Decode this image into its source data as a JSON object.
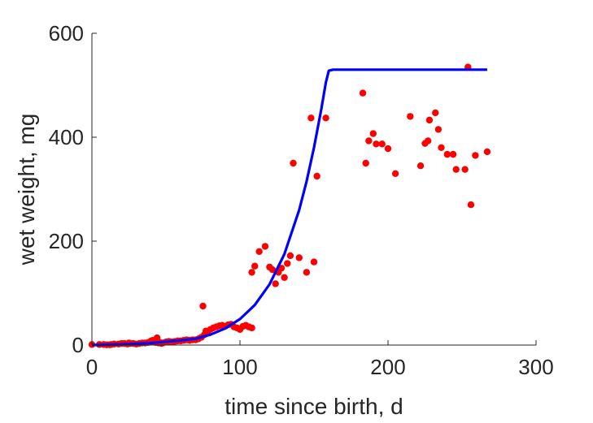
{
  "chart_data": {
    "type": "scatter",
    "title": "",
    "xlabel": "time since birth, d",
    "ylabel": "wet weight, mg",
    "xlim": [
      0,
      300
    ],
    "ylim": [
      0,
      600
    ],
    "xticks": [
      0,
      100,
      200,
      300
    ],
    "yticks": [
      0,
      200,
      400,
      600
    ],
    "grid": false,
    "legend": "none",
    "series": [
      {
        "kind": "scatter",
        "color": "#ff0000",
        "points": [
          [
            0,
            1
          ],
          [
            5,
            1
          ],
          [
            8,
            1
          ],
          [
            10,
            0.5
          ],
          [
            12,
            0.5
          ],
          [
            13,
            1
          ],
          [
            15,
            2
          ],
          [
            18,
            2
          ],
          [
            20,
            3
          ],
          [
            22,
            3
          ],
          [
            24,
            2
          ],
          [
            25,
            4
          ],
          [
            26,
            3
          ],
          [
            28,
            3
          ],
          [
            30,
            2
          ],
          [
            32,
            3
          ],
          [
            34,
            4
          ],
          [
            36,
            4
          ],
          [
            38,
            5
          ],
          [
            39,
            6
          ],
          [
            40,
            8
          ],
          [
            41,
            9
          ],
          [
            42,
            6
          ],
          [
            43,
            5
          ],
          [
            44,
            14
          ],
          [
            45,
            4
          ],
          [
            46,
            5
          ],
          [
            47,
            3
          ],
          [
            48,
            4
          ],
          [
            50,
            6
          ],
          [
            52,
            7
          ],
          [
            54,
            6
          ],
          [
            56,
            7
          ],
          [
            58,
            8
          ],
          [
            60,
            8
          ],
          [
            62,
            9
          ],
          [
            64,
            10
          ],
          [
            66,
            9
          ],
          [
            68,
            10
          ],
          [
            70,
            10
          ],
          [
            72,
            12
          ],
          [
            74,
            15
          ],
          [
            75,
            75
          ],
          [
            76,
            20
          ],
          [
            77,
            27
          ],
          [
            78,
            25
          ],
          [
            80,
            30
          ],
          [
            82,
            33
          ],
          [
            84,
            35
          ],
          [
            86,
            37
          ],
          [
            88,
            38
          ],
          [
            90,
            36
          ],
          [
            92,
            39
          ],
          [
            94,
            40
          ],
          [
            96,
            35
          ],
          [
            98,
            33
          ],
          [
            100,
            30
          ],
          [
            102,
            36
          ],
          [
            104,
            38
          ],
          [
            106,
            35
          ],
          [
            108,
            33
          ],
          [
            108,
            140
          ],
          [
            110,
            152
          ],
          [
            113,
            180
          ],
          [
            117,
            190
          ],
          [
            120,
            150
          ],
          [
            122,
            145
          ],
          [
            124,
            118
          ],
          [
            126,
            140
          ],
          [
            128,
            148
          ],
          [
            130,
            130
          ],
          [
            132,
            157
          ],
          [
            134,
            172
          ],
          [
            136,
            350
          ],
          [
            140,
            168
          ],
          [
            145,
            140
          ],
          [
            148,
            437
          ],
          [
            150,
            160
          ],
          [
            152,
            325
          ],
          [
            158,
            437
          ],
          [
            183,
            485
          ],
          [
            185,
            350
          ],
          [
            187,
            393
          ],
          [
            190,
            407
          ],
          [
            192,
            387
          ],
          [
            196,
            387
          ],
          [
            200,
            378
          ],
          [
            205,
            330
          ],
          [
            215,
            440
          ],
          [
            222,
            345
          ],
          [
            225,
            388
          ],
          [
            227,
            393
          ],
          [
            228,
            433
          ],
          [
            232,
            447
          ],
          [
            234,
            415
          ],
          [
            236,
            380
          ],
          [
            240,
            367
          ],
          [
            244,
            367
          ],
          [
            246,
            338
          ],
          [
            252,
            338
          ],
          [
            254,
            535
          ],
          [
            256,
            270
          ],
          [
            259,
            365
          ],
          [
            267,
            372
          ]
        ]
      },
      {
        "kind": "line",
        "color": "#0000ff",
        "points": [
          [
            0,
            0
          ],
          [
            20,
            1.5
          ],
          [
            40,
            4
          ],
          [
            60,
            9
          ],
          [
            70,
            12
          ],
          [
            80,
            20
          ],
          [
            90,
            32
          ],
          [
            100,
            50
          ],
          [
            110,
            77
          ],
          [
            120,
            117
          ],
          [
            130,
            175
          ],
          [
            140,
            260
          ],
          [
            145,
            315
          ],
          [
            150,
            380
          ],
          [
            155,
            455
          ],
          [
            158,
            505
          ],
          [
            160,
            528
          ],
          [
            163,
            530
          ],
          [
            200,
            530
          ],
          [
            240,
            530
          ],
          [
            267,
            530
          ]
        ]
      }
    ]
  }
}
